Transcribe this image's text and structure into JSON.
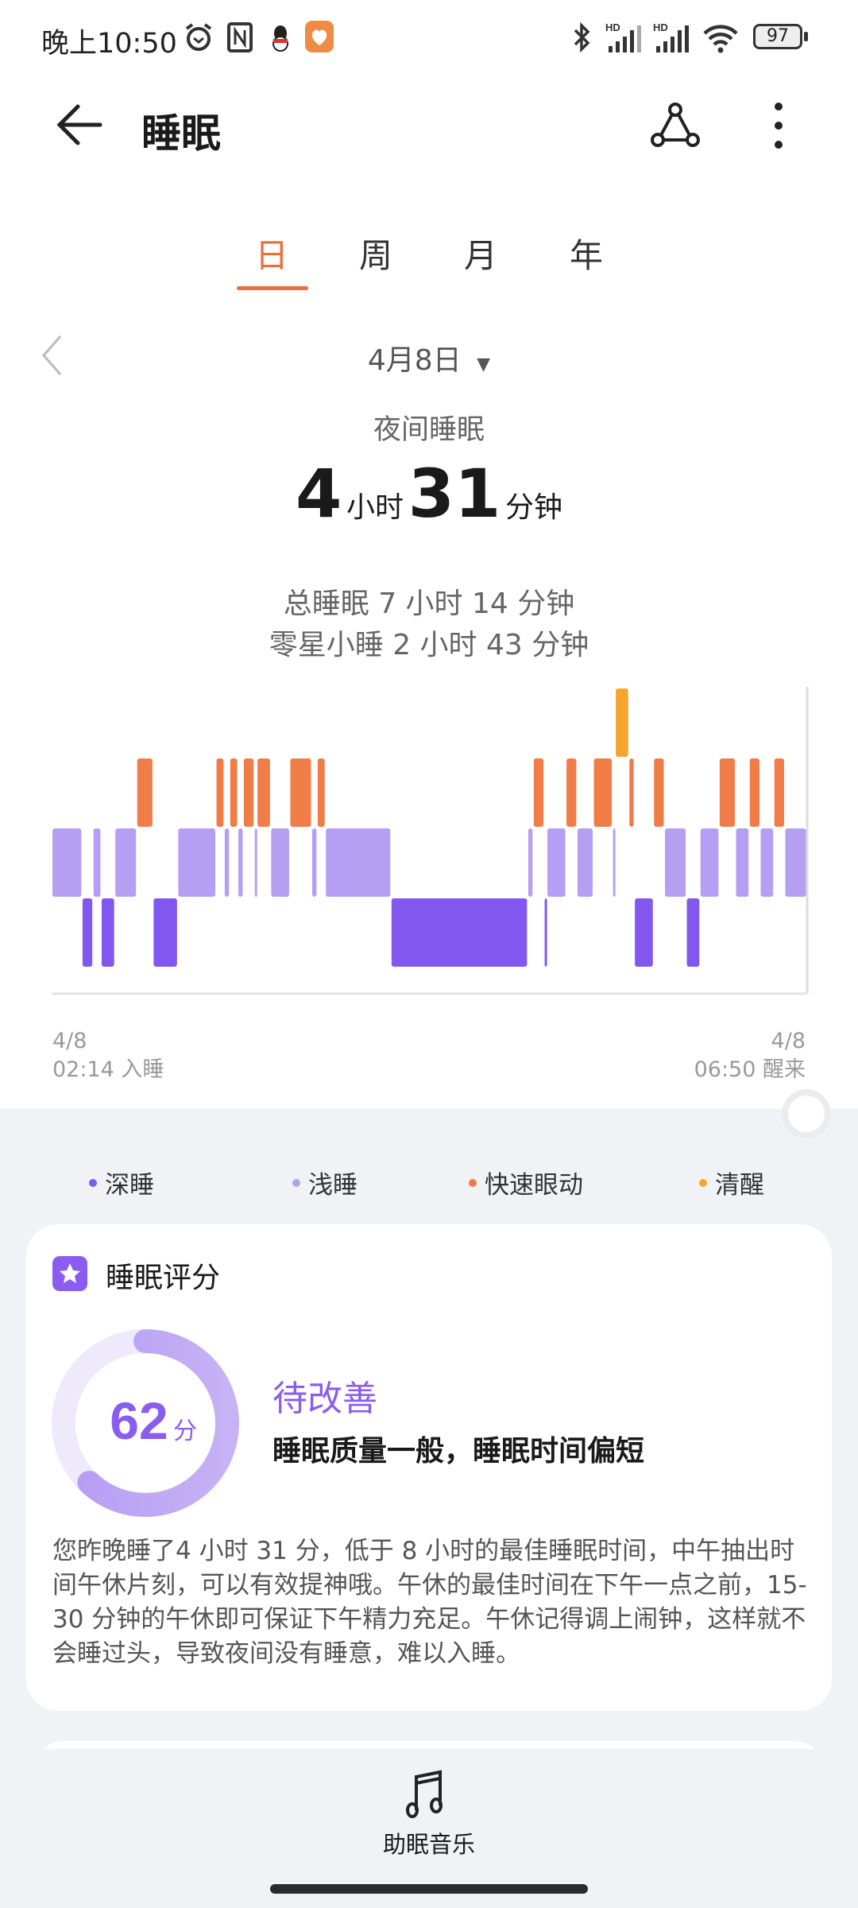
{
  "status_bar": {
    "time": "晚上10:50",
    "battery": "97",
    "icons": [
      "alarm-icon",
      "nfc-icon",
      "qq-icon",
      "health-app-icon",
      "bluetooth-icon",
      "signal-hd-icon",
      "signal-hd-icon",
      "wifi-icon",
      "battery-icon"
    ]
  },
  "header": {
    "title": "睡眠",
    "icons": [
      "back-arrow-icon",
      "share-icon",
      "more-icon"
    ]
  },
  "tabs": [
    {
      "label": "日",
      "active": true
    },
    {
      "label": "周"
    },
    {
      "label": "月"
    },
    {
      "label": "年"
    }
  ],
  "date_selector": {
    "value": "4月8日"
  },
  "summary": {
    "label": "夜间睡眠",
    "hours": "4",
    "hours_unit": "小时",
    "minutes": "31",
    "minutes_unit": "分钟",
    "total": "总睡眠 7 小时 14 分钟",
    "nap": "零星小睡 2 小时 43 分钟"
  },
  "chart_data": {
    "type": "hypnogram",
    "x_range": [
      "02:14",
      "06:50"
    ],
    "stages": [
      "清醒",
      "快速眼动",
      "浅睡",
      "深睡"
    ],
    "colors": {
      "深睡": "#8257ef",
      "浅睡": "#b59ff2",
      "快速眼动": "#f07c48",
      "清醒": "#f5a72d"
    },
    "segments": [
      [
        "浅睡",
        "02:14",
        "02:25"
      ],
      [
        "深睡",
        "02:25",
        "02:29"
      ],
      [
        "浅睡",
        "02:29",
        "02:32"
      ],
      [
        "深睡",
        "02:32",
        "02:37"
      ],
      [
        "浅睡",
        "02:37",
        "02:45"
      ],
      [
        "快速眼动",
        "02:45",
        "02:51"
      ],
      [
        "深睡",
        "02:51",
        "03:00"
      ],
      [
        "浅睡",
        "03:00",
        "03:14"
      ],
      [
        "快速眼动",
        "03:14",
        "03:17"
      ],
      [
        "浅睡",
        "03:17",
        "03:19"
      ],
      [
        "快速眼动",
        "03:19",
        "03:22"
      ],
      [
        "浅睡",
        "03:22",
        "03:24"
      ],
      [
        "快速眼动",
        "03:24",
        "03:28"
      ],
      [
        "浅睡",
        "03:28",
        "03:29"
      ],
      [
        "快速眼动",
        "03:29",
        "03:34"
      ],
      [
        "浅睡",
        "03:34",
        "03:41"
      ],
      [
        "快速眼动",
        "03:41",
        "03:49"
      ],
      [
        "浅睡",
        "03:49",
        "03:51"
      ],
      [
        "快速眼动",
        "03:51",
        "03:54"
      ],
      [
        "浅睡",
        "03:54",
        "04:18"
      ],
      [
        "深睡",
        "04:18",
        "05:08"
      ],
      [
        "浅睡",
        "05:08",
        "05:10"
      ],
      [
        "快速眼动",
        "05:10",
        "05:14"
      ],
      [
        "深睡",
        "05:14",
        "05:15"
      ],
      [
        "浅睡",
        "05:15",
        "05:22"
      ],
      [
        "快速眼动",
        "05:22",
        "05:26"
      ],
      [
        "浅睡",
        "05:26",
        "05:32"
      ],
      [
        "快速眼动",
        "05:32",
        "05:39"
      ],
      [
        "浅睡",
        "05:39",
        "05:40"
      ],
      [
        "清醒",
        "05:40",
        "05:45"
      ],
      [
        "快速眼动",
        "05:45",
        "05:47"
      ],
      [
        "深睡",
        "05:47",
        "05:54"
      ],
      [
        "快速眼动",
        "05:54",
        "05:58"
      ],
      [
        "浅睡",
        "05:58",
        "06:06"
      ],
      [
        "深睡",
        "06:06",
        "06:11"
      ],
      [
        "浅睡",
        "06:11",
        "06:18"
      ],
      [
        "快速眼动",
        "06:18",
        "06:24"
      ],
      [
        "浅睡",
        "06:24",
        "06:29"
      ],
      [
        "快速眼动",
        "06:29",
        "06:33"
      ],
      [
        "浅睡",
        "06:33",
        "06:38"
      ],
      [
        "快速眼动",
        "06:38",
        "06:42"
      ],
      [
        "浅睡",
        "06:42",
        "06:50"
      ]
    ],
    "start_label": {
      "date": "4/8",
      "text": "02:14 入睡"
    },
    "end_label": {
      "date": "4/8",
      "text": "06:50 醒来"
    },
    "legend": [
      "深睡",
      "浅睡",
      "快速眼动",
      "清醒"
    ],
    "legend_placement": "bottom"
  },
  "score_card": {
    "title": "睡眠评分",
    "score": "62",
    "score_value": 62,
    "score_max": 100,
    "unit": "分",
    "rating": "待改善",
    "summary": "睡眠质量一般，睡眠时间偏短",
    "description": "您昨晚睡了4 小时 31 分，低于 8 小时的最佳睡眠时间，中午抽出时间午休片刻，可以有效提神哦。午休的最佳时间在下午一点之前，15-30 分钟的午休即可保证下午精力充足。午休记得调上闹钟，这样就不会睡过头，导致夜间没有睡意，难以入睡。",
    "accent": "#8a5cf0"
  },
  "bottom_action": {
    "label": "助眠音乐",
    "icon": "music-note-icon"
  }
}
